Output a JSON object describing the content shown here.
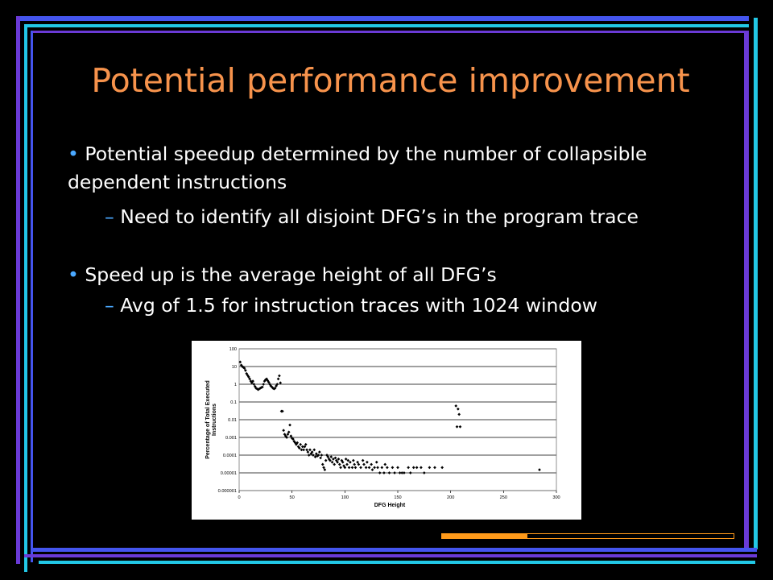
{
  "slide": {
    "title": "Potential performance improvement",
    "bullets": [
      {
        "marker": "•",
        "text": "Potential speedup determined by the number of collapsible dependent instructions"
      },
      {
        "marker": "–",
        "text": "Need to identify all disjoint DFG’s in the program trace"
      },
      {
        "marker": "•",
        "text": "Speed up is the average height of all DFG’s"
      },
      {
        "marker": "–",
        "text": "Avg of 1.5 for instruction traces with 1024 window"
      }
    ],
    "colors": {
      "title": "#f7934c",
      "bullet_marker": "#4aa8ff",
      "background": "#000000",
      "frame_blue": "#4455ee",
      "frame_cyan": "#22c8e6",
      "frame_purple": "#6a3ad6",
      "accent_orange": "#ff9a1a"
    }
  },
  "chart_data": {
    "type": "scatter",
    "xlabel": "DFG Height",
    "ylabel_lines": [
      "Percentage of Total Executed",
      "Instructions"
    ],
    "x_ticks": [
      "0",
      "50",
      "100",
      "150",
      "200",
      "250",
      "300"
    ],
    "y_ticks": [
      "100",
      "10",
      "1",
      "0.1",
      "0.01",
      "0.001",
      "0.0001",
      "0.00001",
      "0.000001"
    ],
    "xlim": [
      0,
      300
    ],
    "ylim": [
      1e-06,
      100
    ],
    "yscale": "log",
    "grid": "horizontal",
    "points": [
      [
        1,
        18
      ],
      [
        2,
        12
      ],
      [
        3,
        10
      ],
      [
        4,
        9
      ],
      [
        5,
        8
      ],
      [
        6,
        6
      ],
      [
        7,
        4
      ],
      [
        8,
        3.2
      ],
      [
        9,
        2.6
      ],
      [
        10,
        2
      ],
      [
        11,
        1.5
      ],
      [
        12,
        1.2
      ],
      [
        13,
        1.5
      ],
      [
        14,
        1
      ],
      [
        15,
        0.75
      ],
      [
        16,
        0.6
      ],
      [
        17,
        0.55
      ],
      [
        18,
        0.5
      ],
      [
        19,
        0.55
      ],
      [
        20,
        0.6
      ],
      [
        21,
        0.65
      ],
      [
        22,
        0.7
      ],
      [
        23,
        1
      ],
      [
        24,
        1.5
      ],
      [
        25,
        1.8
      ],
      [
        26,
        2
      ],
      [
        27,
        1.6
      ],
      [
        28,
        1.3
      ],
      [
        29,
        1
      ],
      [
        30,
        0.8
      ],
      [
        31,
        0.7
      ],
      [
        32,
        0.6
      ],
      [
        33,
        0.55
      ],
      [
        34,
        0.6
      ],
      [
        35,
        0.8
      ],
      [
        36,
        1
      ],
      [
        37,
        2
      ],
      [
        38,
        3
      ],
      [
        39,
        1.2
      ],
      [
        40,
        0.03
      ],
      [
        41,
        0.03
      ],
      [
        42,
        0.0025
      ],
      [
        43,
        0.0015
      ],
      [
        44,
        0.0012
      ],
      [
        45,
        0.001
      ],
      [
        46,
        0.0015
      ],
      [
        47,
        0.002
      ],
      [
        48,
        0.005
      ],
      [
        49,
        0.0012
      ],
      [
        50,
        0.0009
      ],
      [
        51,
        0.0008
      ],
      [
        52,
        0.0006
      ],
      [
        53,
        0.0005
      ],
      [
        54,
        0.0004
      ],
      [
        55,
        0.0005
      ],
      [
        56,
        0.0003
      ],
      [
        57,
        0.00025
      ],
      [
        58,
        0.0004
      ],
      [
        59,
        0.0002
      ],
      [
        60,
        0.0003
      ],
      [
        61,
        0.0002
      ],
      [
        62,
        0.0003
      ],
      [
        63,
        0.0004
      ],
      [
        64,
        0.0002
      ],
      [
        65,
        0.00015
      ],
      [
        66,
        0.0001
      ],
      [
        67,
        0.0002
      ],
      [
        68,
        0.00012
      ],
      [
        69,
        0.00015
      ],
      [
        70,
        0.0001
      ],
      [
        71,
        0.0002
      ],
      [
        72,
        8e-05
      ],
      [
        73,
        0.00012
      ],
      [
        74,
        9e-05
      ],
      [
        75,
        0.0001
      ],
      [
        76,
        0.00015
      ],
      [
        77,
        7e-05
      ],
      [
        78,
        0.0001
      ],
      [
        79,
        3e-05
      ],
      [
        80,
        2e-05
      ],
      [
        81,
        1.5e-05
      ],
      [
        82,
        5e-05
      ],
      [
        83,
        0.0001
      ],
      [
        84,
        8e-05
      ],
      [
        85,
        6e-05
      ],
      [
        86,
        5e-05
      ],
      [
        87,
        8e-05
      ],
      [
        88,
        4e-05
      ],
      [
        89,
        6e-05
      ],
      [
        90,
        3e-05
      ],
      [
        91,
        7e-05
      ],
      [
        92,
        5e-05
      ],
      [
        93,
        4e-05
      ],
      [
        94,
        6e-05
      ],
      [
        95,
        3e-05
      ],
      [
        96,
        2e-05
      ],
      [
        97,
        5e-05
      ],
      [
        98,
        4e-05
      ],
      [
        99,
        2.5e-05
      ],
      [
        100,
        2e-05
      ],
      [
        101,
        6e-05
      ],
      [
        102,
        3e-05
      ],
      [
        103,
        5e-05
      ],
      [
        104,
        2e-05
      ],
      [
        105,
        4e-05
      ],
      [
        107,
        2e-05
      ],
      [
        108,
        5e-05
      ],
      [
        109,
        3e-05
      ],
      [
        110,
        2e-05
      ],
      [
        112,
        4e-05
      ],
      [
        113,
        3e-05
      ],
      [
        115,
        2e-05
      ],
      [
        117,
        5e-05
      ],
      [
        118,
        3e-05
      ],
      [
        120,
        2e-05
      ],
      [
        121,
        4e-05
      ],
      [
        123,
        2e-05
      ],
      [
        125,
        3e-05
      ],
      [
        126,
        1.5e-05
      ],
      [
        128,
        2e-05
      ],
      [
        130,
        4e-05
      ],
      [
        131,
        2e-05
      ],
      [
        133,
        1e-05
      ],
      [
        135,
        2e-05
      ],
      [
        137,
        1e-05
      ],
      [
        138,
        3e-05
      ],
      [
        140,
        2e-05
      ],
      [
        142,
        1e-05
      ],
      [
        145,
        2e-05
      ],
      [
        147,
        1e-05
      ],
      [
        150,
        2e-05
      ],
      [
        152,
        1e-05
      ],
      [
        154,
        1e-05
      ],
      [
        156,
        1e-05
      ],
      [
        160,
        2e-05
      ],
      [
        162,
        1e-05
      ],
      [
        165,
        2e-05
      ],
      [
        168,
        2e-05
      ],
      [
        172,
        2e-05
      ],
      [
        175,
        1e-05
      ],
      [
        180,
        2e-05
      ],
      [
        185,
        2e-05
      ],
      [
        192,
        2e-05
      ],
      [
        205,
        0.06
      ],
      [
        206,
        0.004
      ],
      [
        207,
        0.04
      ],
      [
        208,
        0.02
      ],
      [
        209,
        0.004
      ],
      [
        284,
        1.5e-05
      ]
    ]
  }
}
